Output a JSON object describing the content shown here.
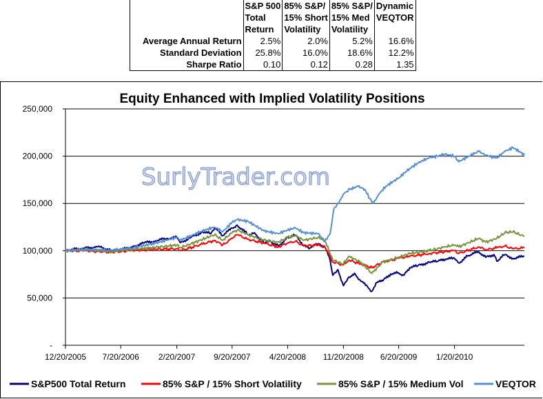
{
  "stats_table": {
    "headers": [
      [
        "S&P 500",
        "Total",
        "Return"
      ],
      [
        "85% S&P/",
        "15% Short",
        "Volatility"
      ],
      [
        "85% S&P/",
        "15% Med",
        "Volatility"
      ],
      [
        "Dynamic",
        "VEQTOR",
        ""
      ]
    ],
    "rows": [
      {
        "label": "Average Annual Return",
        "values": [
          "2.5%",
          "2.0%",
          "5.2%",
          "16.6%"
        ]
      },
      {
        "label": "Standard Deviation",
        "values": [
          "25.8%",
          "16.0%",
          "18.6%",
          "12.2%"
        ]
      },
      {
        "label": "Sharpe Ratio",
        "values": [
          "0.10",
          "0.12",
          "0.28",
          "1.35"
        ]
      }
    ]
  },
  "watermark": "SurlyTrader.com",
  "chart_data": {
    "type": "line",
    "title": "Equity Enhanced with Implied Volatility Positions",
    "ylim": [
      0,
      250000
    ],
    "y_ticks": [
      "-",
      "50,000",
      "100,000",
      "150,000",
      "200,000",
      "250,000"
    ],
    "y_tick_values": [
      0,
      50000,
      100000,
      150000,
      200000,
      250000
    ],
    "x_range": [
      "2005-12-20",
      "2010-10-15"
    ],
    "x_ticks": [
      "12/20/2005",
      "7/20/2006",
      "2/20/2007",
      "9/20/2007",
      "4/20/2008",
      "11/20/2008",
      "6/20/2009",
      "1/20/2010"
    ],
    "x_tick_dates": [
      "2005-12-20",
      "2006-07-20",
      "2007-02-20",
      "2007-09-20",
      "2008-04-20",
      "2008-11-20",
      "2009-06-20",
      "2010-01-20"
    ],
    "grid": "horizontal",
    "legend": "bottom",
    "series": [
      {
        "name": "S&P500 Total Return",
        "color": "#00007f",
        "points": [
          [
            "2005-12-20",
            100000
          ],
          [
            "2006-01-15",
            101500
          ],
          [
            "2006-03-01",
            102500
          ],
          [
            "2006-04-20",
            104000
          ],
          [
            "2006-05-15",
            103000
          ],
          [
            "2006-06-15",
            99500
          ],
          [
            "2006-07-20",
            101000
          ],
          [
            "2006-09-01",
            104000
          ],
          [
            "2006-10-15",
            108000
          ],
          [
            "2006-12-01",
            110500
          ],
          [
            "2007-01-15",
            113000
          ],
          [
            "2007-02-20",
            114000
          ],
          [
            "2007-03-05",
            108500
          ],
          [
            "2007-04-15",
            114000
          ],
          [
            "2007-05-30",
            120000
          ],
          [
            "2007-06-30",
            118000
          ],
          [
            "2007-07-15",
            124000
          ],
          [
            "2007-08-15",
            116000
          ],
          [
            "2007-09-20",
            124000
          ],
          [
            "2007-10-10",
            127000
          ],
          [
            "2007-11-20",
            117000
          ],
          [
            "2007-12-15",
            119000
          ],
          [
            "2008-01-20",
            108000
          ],
          [
            "2008-02-15",
            110000
          ],
          [
            "2008-03-15",
            105000
          ],
          [
            "2008-04-20",
            114000
          ],
          [
            "2008-05-20",
            116500
          ],
          [
            "2008-06-20",
            106000
          ],
          [
            "2008-07-15",
            103000
          ],
          [
            "2008-08-15",
            107500
          ],
          [
            "2008-09-10",
            104000
          ],
          [
            "2008-09-30",
            90000
          ],
          [
            "2008-10-10",
            74000
          ],
          [
            "2008-10-30",
            80000
          ],
          [
            "2008-11-20",
            63000
          ],
          [
            "2008-12-10",
            72000
          ],
          [
            "2009-01-05",
            75000
          ],
          [
            "2009-01-25",
            68000
          ],
          [
            "2009-02-20",
            62000
          ],
          [
            "2009-03-09",
            57000
          ],
          [
            "2009-03-25",
            66000
          ],
          [
            "2009-04-20",
            68000
          ],
          [
            "2009-05-20",
            75500
          ],
          [
            "2009-06-20",
            76500
          ],
          [
            "2009-07-10",
            74000
          ],
          [
            "2009-08-01",
            82000
          ],
          [
            "2009-09-01",
            84000
          ],
          [
            "2009-10-15",
            88000
          ],
          [
            "2009-11-15",
            88500
          ],
          [
            "2009-12-15",
            91000
          ],
          [
            "2010-01-20",
            92000
          ],
          [
            "2010-02-05",
            87000
          ],
          [
            "2010-03-15",
            95000
          ],
          [
            "2010-04-23",
            99000
          ],
          [
            "2010-05-20",
            93000
          ],
          [
            "2010-06-20",
            96000
          ],
          [
            "2010-07-01",
            89000
          ],
          [
            "2010-08-01",
            96000
          ],
          [
            "2010-09-01",
            92000
          ],
          [
            "2010-10-15",
            94000
          ]
        ]
      },
      {
        "name": "85% S&P / 15% Short Volatility",
        "color": "#ff0000",
        "points": [
          [
            "2005-12-20",
            100000
          ],
          [
            "2006-03-01",
            100000
          ],
          [
            "2006-06-15",
            98500
          ],
          [
            "2006-09-01",
            100500
          ],
          [
            "2006-12-01",
            101500
          ],
          [
            "2007-02-20",
            102000
          ],
          [
            "2007-03-05",
            100000
          ],
          [
            "2007-05-30",
            107000
          ],
          [
            "2007-07-15",
            111000
          ],
          [
            "2007-08-15",
            106000
          ],
          [
            "2007-09-20",
            113000
          ],
          [
            "2007-10-10",
            117000
          ],
          [
            "2007-11-20",
            112000
          ],
          [
            "2008-01-20",
            108000
          ],
          [
            "2008-03-15",
            104000
          ],
          [
            "2008-04-20",
            108000
          ],
          [
            "2008-05-20",
            110000
          ],
          [
            "2008-06-20",
            105000
          ],
          [
            "2008-08-15",
            106000
          ],
          [
            "2008-09-10",
            104000
          ],
          [
            "2008-10-10",
            88000
          ],
          [
            "2008-11-20",
            85000
          ],
          [
            "2008-12-10",
            90000
          ],
          [
            "2009-01-25",
            86000
          ],
          [
            "2009-03-09",
            82000
          ],
          [
            "2009-04-20",
            88000
          ],
          [
            "2009-06-20",
            92000
          ],
          [
            "2009-08-01",
            94000
          ],
          [
            "2009-10-15",
            97000
          ],
          [
            "2009-12-15",
            99000
          ],
          [
            "2010-01-20",
            100000
          ],
          [
            "2010-02-05",
            97000
          ],
          [
            "2010-04-23",
            104000
          ],
          [
            "2010-05-20",
            101000
          ],
          [
            "2010-07-01",
            103000
          ],
          [
            "2010-08-01",
            105000
          ],
          [
            "2010-09-01",
            102000
          ],
          [
            "2010-10-15",
            103000
          ]
        ]
      },
      {
        "name": "85% S&P / 15% Medium Vol",
        "color": "#77933c",
        "points": [
          [
            "2005-12-20",
            100000
          ],
          [
            "2006-03-01",
            101000
          ],
          [
            "2006-06-15",
            99000
          ],
          [
            "2006-09-01",
            101500
          ],
          [
            "2006-12-01",
            103500
          ],
          [
            "2007-02-20",
            106000
          ],
          [
            "2007-03-05",
            103000
          ],
          [
            "2007-05-30",
            112000
          ],
          [
            "2007-07-15",
            117000
          ],
          [
            "2007-08-15",
            111000
          ],
          [
            "2007-09-20",
            119000
          ],
          [
            "2007-10-10",
            122000
          ],
          [
            "2007-11-20",
            117000
          ],
          [
            "2008-01-20",
            111000
          ],
          [
            "2008-03-15",
            109000
          ],
          [
            "2008-04-20",
            114000
          ],
          [
            "2008-05-20",
            116000
          ],
          [
            "2008-06-20",
            111000
          ],
          [
            "2008-08-15",
            114000
          ],
          [
            "2008-09-10",
            111000
          ],
          [
            "2008-10-10",
            90000
          ],
          [
            "2008-11-20",
            86000
          ],
          [
            "2008-12-10",
            94000
          ],
          [
            "2009-01-25",
            88000
          ],
          [
            "2009-03-09",
            76000
          ],
          [
            "2009-04-20",
            88000
          ],
          [
            "2009-06-20",
            93000
          ],
          [
            "2009-08-01",
            97000
          ],
          [
            "2009-10-15",
            100000
          ],
          [
            "2009-12-15",
            104000
          ],
          [
            "2010-01-20",
            106000
          ],
          [
            "2010-02-05",
            104000
          ],
          [
            "2010-04-23",
            113000
          ],
          [
            "2010-05-20",
            109000
          ],
          [
            "2010-07-01",
            113000
          ],
          [
            "2010-08-01",
            119000
          ],
          [
            "2010-09-01",
            120000
          ],
          [
            "2010-10-15",
            115000
          ]
        ]
      },
      {
        "name": "VEQTOR",
        "color": "#558ed5",
        "points": [
          [
            "2005-12-20",
            100000
          ],
          [
            "2006-03-01",
            101500
          ],
          [
            "2006-06-15",
            100500
          ],
          [
            "2006-09-01",
            103000
          ],
          [
            "2006-12-01",
            108000
          ],
          [
            "2007-02-20",
            114000
          ],
          [
            "2007-03-05",
            111000
          ],
          [
            "2007-05-30",
            121000
          ],
          [
            "2007-07-15",
            125000
          ],
          [
            "2007-08-15",
            120000
          ],
          [
            "2007-09-20",
            130000
          ],
          [
            "2007-10-10",
            133000
          ],
          [
            "2007-11-20",
            131000
          ],
          [
            "2008-01-20",
            121000
          ],
          [
            "2008-03-15",
            118000
          ],
          [
            "2008-04-20",
            122000
          ],
          [
            "2008-05-20",
            124000
          ],
          [
            "2008-06-20",
            119000
          ],
          [
            "2008-08-15",
            118000
          ],
          [
            "2008-09-10",
            110000
          ],
          [
            "2008-09-30",
            118000
          ],
          [
            "2008-10-15",
            145000
          ],
          [
            "2008-11-01",
            150000
          ],
          [
            "2008-11-20",
            160000
          ],
          [
            "2008-12-15",
            165000
          ],
          [
            "2009-01-15",
            168000
          ],
          [
            "2009-02-10",
            165000
          ],
          [
            "2009-03-01",
            155000
          ],
          [
            "2009-03-15",
            150000
          ],
          [
            "2009-04-05",
            160000
          ],
          [
            "2009-05-01",
            168000
          ],
          [
            "2009-06-20",
            177000
          ],
          [
            "2009-08-01",
            187000
          ],
          [
            "2009-09-15",
            195000
          ],
          [
            "2009-10-15",
            198000
          ],
          [
            "2009-11-15",
            200000
          ],
          [
            "2009-12-15",
            202000
          ],
          [
            "2010-01-20",
            200000
          ],
          [
            "2010-02-05",
            194000
          ],
          [
            "2010-03-15",
            200000
          ],
          [
            "2010-04-23",
            205000
          ],
          [
            "2010-05-20",
            201000
          ],
          [
            "2010-07-01",
            198000
          ],
          [
            "2010-08-01",
            205000
          ],
          [
            "2010-09-01",
            209000
          ],
          [
            "2010-10-01",
            204000
          ],
          [
            "2010-10-15",
            201000
          ]
        ]
      }
    ]
  }
}
